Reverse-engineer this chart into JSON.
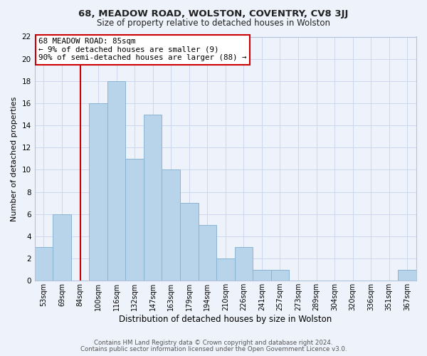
{
  "title1": "68, MEADOW ROAD, WOLSTON, COVENTRY, CV8 3JJ",
  "title2": "Size of property relative to detached houses in Wolston",
  "xlabel": "Distribution of detached houses by size in Wolston",
  "ylabel": "Number of detached properties",
  "bar_labels": [
    "53sqm",
    "69sqm",
    "84sqm",
    "100sqm",
    "116sqm",
    "132sqm",
    "147sqm",
    "163sqm",
    "179sqm",
    "194sqm",
    "210sqm",
    "226sqm",
    "241sqm",
    "257sqm",
    "273sqm",
    "289sqm",
    "304sqm",
    "320sqm",
    "336sqm",
    "351sqm",
    "367sqm"
  ],
  "bar_values": [
    3,
    6,
    0,
    16,
    18,
    11,
    15,
    10,
    7,
    5,
    2,
    3,
    1,
    1,
    0,
    0,
    0,
    0,
    0,
    0,
    1
  ],
  "bar_color": "#b8d4ea",
  "bar_edge_color": "#8ab4d4",
  "vline_x": 2,
  "vline_color": "#cc0000",
  "ylim": [
    0,
    22
  ],
  "yticks": [
    0,
    2,
    4,
    6,
    8,
    10,
    12,
    14,
    16,
    18,
    20,
    22
  ],
  "annotation_title": "68 MEADOW ROAD: 85sqm",
  "annotation_line1": "← 9% of detached houses are smaller (9)",
  "annotation_line2": "90% of semi-detached houses are larger (88) →",
  "annotation_box_color": "#ffffff",
  "annotation_box_edge": "#cc0000",
  "footer1": "Contains HM Land Registry data © Crown copyright and database right 2024.",
  "footer2": "Contains public sector information licensed under the Open Government Licence v3.0.",
  "background_color": "#eef2fb",
  "grid_color": "#ccd8ee",
  "title1_fontsize": 9.5,
  "title2_fontsize": 8.5
}
